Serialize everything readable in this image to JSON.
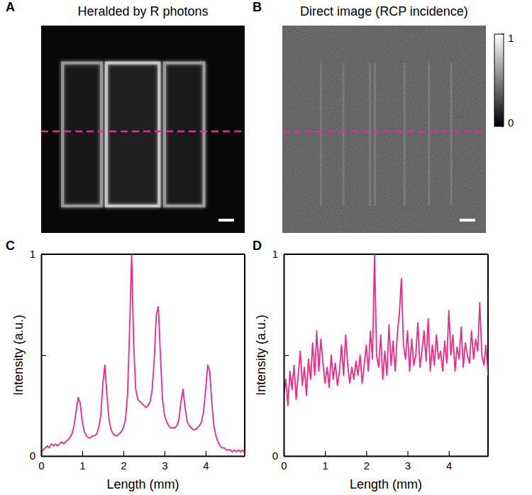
{
  "chart_data": [
    {
      "type": "image",
      "panel": "A",
      "title": "Heralded by R photons"
    },
    {
      "type": "image",
      "panel": "B",
      "title": "Direct image (RCP incidence)",
      "colorbar": {
        "range": [
          0,
          1
        ],
        "ticks": [
          0,
          1
        ]
      }
    },
    {
      "type": "line",
      "panel": "C",
      "x_label": "Length (mm)",
      "y_label": "Intensity (a.u.)",
      "color": "#ec2a8a",
      "x": [
        0,
        0.05,
        0.1,
        0.15,
        0.2,
        0.25,
        0.3,
        0.35,
        0.4,
        0.45,
        0.5,
        0.55,
        0.6,
        0.65,
        0.7,
        0.75,
        0.8,
        0.85,
        0.9,
        0.95,
        1,
        1.05,
        1.1,
        1.15,
        1.2,
        1.25,
        1.3,
        1.35,
        1.4,
        1.45,
        1.5,
        1.55,
        1.6,
        1.65,
        1.7,
        1.75,
        1.8,
        1.85,
        1.9,
        1.95,
        2,
        2.05,
        2.1,
        2.15,
        2.2,
        2.25,
        2.3,
        2.35,
        2.4,
        2.45,
        2.5,
        2.55,
        2.6,
        2.65,
        2.7,
        2.75,
        2.8,
        2.85,
        2.9,
        2.95,
        3,
        3.05,
        3.1,
        3.15,
        3.2,
        3.25,
        3.3,
        3.35,
        3.4,
        3.45,
        3.5,
        3.55,
        3.6,
        3.65,
        3.7,
        3.75,
        3.8,
        3.85,
        3.9,
        3.95,
        4,
        4.05,
        4.1,
        4.15,
        4.2,
        4.25,
        4.3,
        4.35,
        4.4,
        4.45,
        4.5,
        4.55,
        4.6,
        4.65,
        4.7,
        4.75,
        4.8,
        4.85,
        4.9,
        4.95
      ],
      "values": [
        0.02,
        0.03,
        0.04,
        0.05,
        0.04,
        0.06,
        0.05,
        0.06,
        0.05,
        0.06,
        0.07,
        0.06,
        0.07,
        0.08,
        0.09,
        0.11,
        0.15,
        0.22,
        0.29,
        0.26,
        0.17,
        0.12,
        0.1,
        0.09,
        0.09,
        0.1,
        0.1,
        0.11,
        0.14,
        0.2,
        0.36,
        0.45,
        0.3,
        0.18,
        0.13,
        0.11,
        0.1,
        0.1,
        0.11,
        0.12,
        0.14,
        0.18,
        0.3,
        0.62,
        1.0,
        0.55,
        0.33,
        0.28,
        0.27,
        0.26,
        0.25,
        0.24,
        0.25,
        0.27,
        0.33,
        0.48,
        0.7,
        0.74,
        0.5,
        0.28,
        0.2,
        0.17,
        0.15,
        0.14,
        0.14,
        0.14,
        0.15,
        0.18,
        0.27,
        0.33,
        0.24,
        0.17,
        0.15,
        0.14,
        0.13,
        0.13,
        0.14,
        0.15,
        0.17,
        0.22,
        0.33,
        0.45,
        0.42,
        0.26,
        0.15,
        0.1,
        0.07,
        0.05,
        0.04,
        0.04,
        0.03,
        0.03,
        0.03,
        0.02,
        0.03,
        0.02,
        0.03,
        0.02,
        0.03,
        0.01
      ],
      "xlim": [
        0,
        4.95
      ],
      "ylim": [
        0,
        1
      ],
      "xticks": [
        0,
        1,
        2,
        3,
        4
      ],
      "yticks": [
        0,
        {
          "value": 0.5,
          "label": null
        },
        1
      ]
    },
    {
      "type": "line",
      "panel": "D",
      "x_label": "Length (mm)",
      "y_label": "Intensity (a.u.)",
      "color": "#ec2a8a",
      "x": [
        0,
        0.05,
        0.1,
        0.15,
        0.2,
        0.25,
        0.3,
        0.35,
        0.4,
        0.45,
        0.5,
        0.55,
        0.6,
        0.65,
        0.7,
        0.75,
        0.8,
        0.85,
        0.9,
        0.95,
        1,
        1.05,
        1.1,
        1.15,
        1.2,
        1.25,
        1.3,
        1.35,
        1.4,
        1.45,
        1.5,
        1.55,
        1.6,
        1.65,
        1.7,
        1.75,
        1.8,
        1.85,
        1.9,
        1.95,
        2,
        2.05,
        2.1,
        2.15,
        2.2,
        2.25,
        2.3,
        2.35,
        2.4,
        2.45,
        2.5,
        2.55,
        2.6,
        2.65,
        2.7,
        2.75,
        2.8,
        2.85,
        2.9,
        2.95,
        3,
        3.05,
        3.1,
        3.15,
        3.2,
        3.25,
        3.3,
        3.35,
        3.4,
        3.45,
        3.5,
        3.55,
        3.6,
        3.65,
        3.7,
        3.75,
        3.8,
        3.85,
        3.9,
        3.95,
        4,
        4.05,
        4.1,
        4.15,
        4.2,
        4.25,
        4.3,
        4.35,
        4.4,
        4.45,
        4.5,
        4.55,
        4.6,
        4.65,
        4.7,
        4.75,
        4.8,
        4.85,
        4.9,
        4.95
      ],
      "values": [
        0.3,
        0.38,
        0.25,
        0.42,
        0.33,
        0.45,
        0.28,
        0.4,
        0.52,
        0.35,
        0.44,
        0.3,
        0.48,
        0.38,
        0.56,
        0.4,
        0.62,
        0.42,
        0.58,
        0.46,
        0.36,
        0.44,
        0.34,
        0.5,
        0.38,
        0.46,
        0.35,
        0.42,
        0.55,
        0.4,
        0.6,
        0.45,
        0.36,
        0.44,
        0.38,
        0.47,
        0.4,
        0.5,
        0.36,
        0.45,
        0.55,
        0.42,
        0.62,
        0.48,
        1.0,
        0.5,
        0.44,
        0.6,
        0.38,
        0.52,
        0.4,
        0.65,
        0.45,
        0.57,
        0.42,
        0.6,
        0.7,
        0.88,
        0.55,
        0.48,
        0.62,
        0.42,
        0.58,
        0.45,
        0.5,
        0.66,
        0.44,
        0.52,
        0.62,
        0.47,
        0.68,
        0.42,
        0.55,
        0.45,
        0.6,
        0.48,
        0.52,
        0.42,
        0.57,
        0.46,
        0.72,
        0.5,
        0.6,
        0.42,
        0.54,
        0.48,
        0.64,
        0.44,
        0.56,
        0.5,
        0.46,
        0.62,
        0.48,
        0.58,
        0.52,
        0.76,
        0.5,
        0.45,
        0.55,
        0.4
      ],
      "xlim": [
        0,
        4.95
      ],
      "ylim": [
        0,
        1
      ],
      "xticks": [
        0,
        1,
        2,
        3,
        4
      ],
      "yticks": [
        0,
        {
          "value": 0.5,
          "label": null
        },
        1
      ]
    }
  ]
}
